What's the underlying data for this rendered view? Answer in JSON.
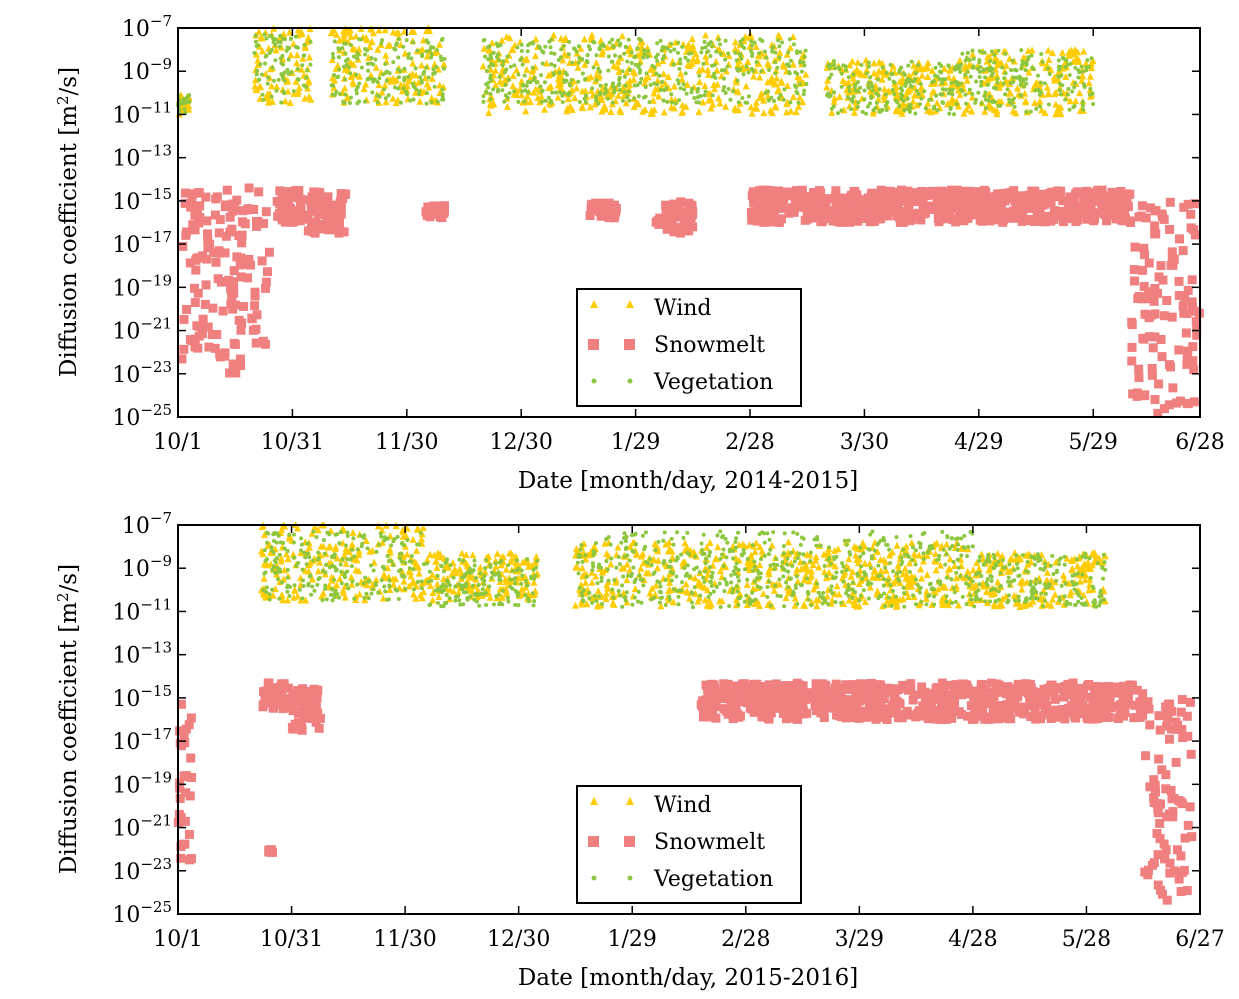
{
  "chart_data": [
    {
      "type": "scatter",
      "title": "",
      "xlabel": "Date [month/day, 2014-2015]",
      "ylabel": "Diffusion coefficient [m²/s]",
      "x_tick_labels": [
        "10/1",
        "10/31",
        "11/30",
        "12/30",
        "1/29",
        "2/28",
        "3/30",
        "4/29",
        "5/29",
        "6/28"
      ],
      "x_tick_days": [
        0,
        30,
        60,
        90,
        120,
        150,
        180,
        210,
        240,
        270
      ],
      "xlim_days": [
        0,
        268
      ],
      "y_scale": "log",
      "ylim": [
        "1e-25",
        "1e-7"
      ],
      "y_tick_exponents": [
        -25,
        -23,
        -21,
        -19,
        -17,
        -15,
        -13,
        -11,
        -9,
        -7
      ],
      "legend_position": "lower-center",
      "legend": [
        "Wind",
        "Snowmelt",
        "Vegetation"
      ],
      "series": [
        {
          "name": "Wind",
          "marker": "triangle",
          "color": "#FFCC00",
          "clusters": [
            {
              "day_range": [
                0,
                3
              ],
              "log10_range": [
                -11,
                -10
              ]
            },
            {
              "day_range": [
                20,
                35
              ],
              "log10_range": [
                -10.5,
                -7
              ]
            },
            {
              "day_range": [
                40,
                70
              ],
              "log10_range": [
                -10.5,
                -7
              ]
            },
            {
              "day_range": [
                80,
                165
              ],
              "log10_range": [
                -11,
                -7.3
              ]
            },
            {
              "day_range": [
                170,
                205
              ],
              "log10_range": [
                -11,
                -8.5
              ]
            },
            {
              "day_range": [
                205,
                240
              ],
              "log10_range": [
                -11,
                -8
              ]
            }
          ]
        },
        {
          "name": "Snowmelt",
          "marker": "square",
          "color": "#F08080",
          "clusters": [
            {
              "day_range": [
                1,
                12
              ],
              "log10_range": [
                -23,
                -14.5
              ]
            },
            {
              "day_range": [
                12,
                24
              ],
              "log10_range": [
                -23,
                -14.3
              ]
            },
            {
              "day_range": [
                26,
                33
              ],
              "log10_range": [
                -16,
                -14.5
              ]
            },
            {
              "day_range": [
                34,
                44
              ],
              "log10_range": [
                -16.5,
                -14.5
              ]
            },
            {
              "day_range": [
                65,
                70
              ],
              "log10_range": [
                -15.8,
                -15.2
              ]
            },
            {
              "day_range": [
                108,
                115
              ],
              "log10_range": [
                -15.8,
                -15.1
              ]
            },
            {
              "day_range": [
                125,
                135
              ],
              "log10_range": [
                -16.5,
                -15
              ]
            },
            {
              "day_range": [
                150,
                250
              ],
              "log10_range": [
                -16,
                -14.5
              ]
            },
            {
              "day_range": [
                250,
                268
              ],
              "log10_range": [
                -25,
                -15
              ]
            }
          ]
        },
        {
          "name": "Vegetation",
          "marker": "dot",
          "color": "#8DC63F",
          "clusters": [
            {
              "day_range": [
                0,
                3
              ],
              "log10_range": [
                -11,
                -10
              ]
            },
            {
              "day_range": [
                20,
                35
              ],
              "log10_range": [
                -10.5,
                -7.3
              ]
            },
            {
              "day_range": [
                40,
                70
              ],
              "log10_range": [
                -10.5,
                -7.5
              ]
            },
            {
              "day_range": [
                80,
                165
              ],
              "log10_range": [
                -10.5,
                -7.5
              ]
            },
            {
              "day_range": [
                170,
                205
              ],
              "log10_range": [
                -11,
                -8.5
              ]
            },
            {
              "day_range": [
                205,
                240
              ],
              "log10_range": [
                -11,
                -8
              ]
            }
          ]
        }
      ]
    },
    {
      "type": "scatter",
      "title": "",
      "xlabel": "Date [month/day, 2015-2016]",
      "ylabel": "Diffusion coefficient [m²/s]",
      "x_tick_labels": [
        "10/1",
        "10/31",
        "11/30",
        "12/30",
        "1/29",
        "2/28",
        "3/29",
        "4/28",
        "5/28",
        "6/27"
      ],
      "x_tick_days": [
        0,
        30,
        60,
        90,
        120,
        150,
        180,
        210,
        240,
        270
      ],
      "xlim_days": [
        0,
        270
      ],
      "y_scale": "log",
      "ylim": [
        "1e-25",
        "1e-7"
      ],
      "y_tick_exponents": [
        -25,
        -23,
        -21,
        -19,
        -17,
        -15,
        -13,
        -11,
        -9,
        -7
      ],
      "legend_position": "lower-center",
      "legend": [
        "Wind",
        "Snowmelt",
        "Vegetation"
      ],
      "series": [
        {
          "name": "Wind",
          "marker": "triangle",
          "color": "#FFCC00",
          "clusters": [
            {
              "day_range": [
                22,
                65
              ],
              "log10_range": [
                -10.5,
                -7
              ]
            },
            {
              "day_range": [
                65,
                95
              ],
              "log10_range": [
                -10.5,
                -8.3
              ]
            },
            {
              "day_range": [
                105,
                210
              ],
              "log10_range": [
                -10.8,
                -7.8
              ]
            },
            {
              "day_range": [
                210,
                245
              ],
              "log10_range": [
                -10.8,
                -8.3
              ]
            }
          ]
        },
        {
          "name": "Snowmelt",
          "marker": "square",
          "color": "#F08080",
          "clusters": [
            {
              "day_range": [
                0,
                4
              ],
              "log10_range": [
                -22.5,
                -14.5
              ]
            },
            {
              "day_range": [
                22,
                30
              ],
              "log10_range": [
                -15.5,
                -14.3
              ]
            },
            {
              "day_range": [
                30,
                38
              ],
              "log10_range": [
                -16.5,
                -14.5
              ]
            },
            {
              "day_range": [
                24,
                25
              ],
              "log10_range": [
                -22.2,
                -22
              ]
            },
            {
              "day_range": [
                138,
                215
              ],
              "log10_range": [
                -16,
                -14.3
              ]
            },
            {
              "day_range": [
                215,
                255
              ],
              "log10_range": [
                -16,
                -14.3
              ]
            },
            {
              "day_range": [
                255,
                268
              ],
              "log10_range": [
                -24.5,
                -15
              ]
            }
          ]
        },
        {
          "name": "Vegetation",
          "marker": "dot",
          "color": "#8DC63F",
          "clusters": [
            {
              "day_range": [
                22,
                65
              ],
              "log10_range": [
                -10.5,
                -7.3
              ]
            },
            {
              "day_range": [
                65,
                95
              ],
              "log10_range": [
                -10.8,
                -8.5
              ]
            },
            {
              "day_range": [
                105,
                210
              ],
              "log10_range": [
                -10.8,
                -7.3
              ]
            },
            {
              "day_range": [
                210,
                245
              ],
              "log10_range": [
                -10.8,
                -8.3
              ]
            }
          ]
        }
      ]
    }
  ]
}
